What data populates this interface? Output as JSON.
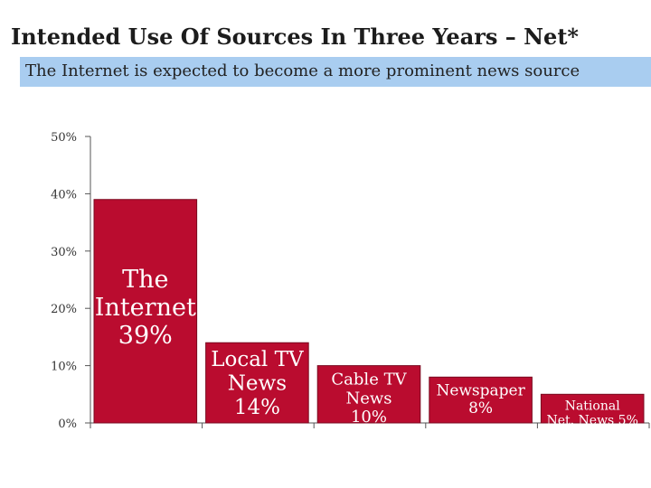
{
  "title": "Intended Use Of Sources In Three Years – Net*",
  "subtitle": "The Internet is expected to become a more prominent news source",
  "colors": {
    "bar": "#ba0c2f",
    "axis": "#555555",
    "subtitle_bg": "#a9cdf0"
  },
  "chart_data": {
    "type": "bar",
    "title": "Intended Use Of Sources In Three Years – Net*",
    "subtitle": "The Internet is expected to become a more prominent news source",
    "categories": [
      "The Internet",
      "Local TV News",
      "Cable TV News",
      "Newspaper",
      "National Net. News"
    ],
    "values": [
      39,
      14,
      10,
      8,
      5
    ],
    "bar_labels": [
      [
        "The",
        "Internet",
        "39%"
      ],
      [
        "Local TV",
        "News",
        "14%"
      ],
      [
        "Cable TV",
        "News",
        "10%"
      ],
      [
        "Newspaper",
        "8%"
      ],
      [
        "National",
        "Net. News  5%"
      ]
    ],
    "yticks": [
      "0%",
      "10%",
      "20%",
      "30%",
      "40%",
      "50%"
    ],
    "ylim": [
      0,
      50
    ],
    "grid": false,
    "legend": "none"
  }
}
